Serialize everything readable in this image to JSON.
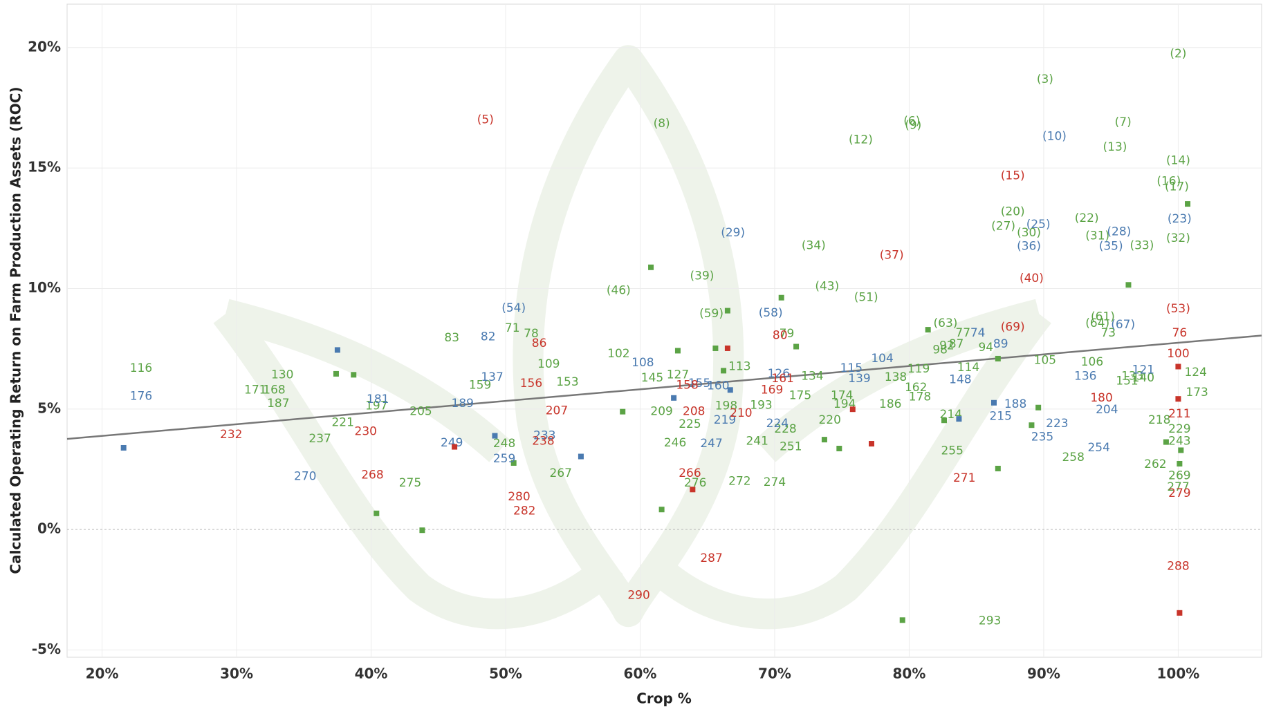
{
  "chart_data": {
    "type": "scatter",
    "x_label": "Crop %",
    "y_label": "Calculated Operating Return on Farm Production Assets (ROC)",
    "xlim": [
      17.4,
      106.2
    ],
    "ylim": [
      -5.3,
      21.8
    ],
    "xticks": [
      {
        "value": 20,
        "label": "20%"
      },
      {
        "value": 30,
        "label": "30%"
      },
      {
        "value": 40,
        "label": "40%"
      },
      {
        "value": 50,
        "label": "50%"
      },
      {
        "value": 60,
        "label": "60%"
      },
      {
        "value": 70,
        "label": "70%"
      },
      {
        "value": 80,
        "label": "80%"
      },
      {
        "value": 90,
        "label": "90%"
      },
      {
        "value": 100,
        "label": "100%"
      }
    ],
    "yticks": [
      {
        "value": -5,
        "label": "-5%"
      },
      {
        "value": 0,
        "label": "0%"
      },
      {
        "value": 5,
        "label": "5%"
      },
      {
        "value": 10,
        "label": "10%"
      },
      {
        "value": 15,
        "label": "15%"
      },
      {
        "value": 20,
        "label": "20%"
      }
    ],
    "grid": true,
    "trendline": {
      "color": "#777777",
      "x": [
        17.4,
        106.2
      ],
      "y": [
        3.76,
        8.05
      ]
    },
    "series": [
      {
        "color": "#5ba345",
        "x": [
          100.0,
          90.1,
          80.2,
          80.3,
          95.9,
          61.6,
          76.4,
          95.3,
          100.0,
          99.3,
          99.9,
          87.7,
          93.2,
          87.0,
          88.9,
          94.0,
          97.3,
          100.0,
          72.9,
          64.6,
          58.4,
          73.9,
          76.8,
          65.3,
          94.4,
          94.0,
          82.7,
          50.5,
          51.9,
          46.0,
          70.9,
          84.0,
          94.8,
          82.8,
          83.5,
          82.3,
          85.7,
          58.4,
          53.2,
          90.1,
          93.6,
          22.9,
          67.4,
          84.4,
          80.7,
          62.8,
          60.9,
          33.4,
          96.6,
          97.4,
          101.3,
          79.0,
          72.8,
          54.6,
          48.1,
          96.2,
          31.4,
          32.8,
          80.5,
          101.4,
          75.0,
          71.9,
          80.8,
          33.1,
          78.6,
          75.2,
          40.4,
          66.4,
          69.0,
          43.7,
          61.6,
          74.1,
          37.9,
          98.6,
          83.1,
          63.7,
          70.8,
          100.1,
          36.2,
          68.7,
          100.1,
          62.6,
          49.9,
          71.2,
          83.2,
          92.2,
          98.3,
          54.1,
          100.1,
          67.4,
          70.0,
          42.9,
          64.1,
          100.0,
          86.0,
          60.8,
          100.7,
          70.5,
          66.5,
          96.3,
          81.4,
          71.6,
          65.6,
          62.8,
          86.6,
          66.2,
          37.4,
          38.7,
          58.7,
          89.6,
          82.6,
          89.1,
          73.7,
          74.8,
          100.2,
          99.1,
          50.6,
          86.6,
          100.1,
          40.4,
          43.8,
          61.6,
          79.5
        ],
        "values": [
          19.73,
          18.67,
          16.94,
          16.77,
          16.9,
          16.84,
          16.17,
          15.87,
          15.31,
          14.44,
          14.21,
          13.18,
          12.91,
          12.58,
          12.31,
          12.18,
          11.78,
          12.08,
          11.78,
          10.52,
          9.92,
          10.08,
          9.62,
          8.95,
          8.82,
          8.55,
          8.55,
          8.35,
          8.12,
          7.95,
          8.12,
          8.15,
          8.15,
          7.62,
          7.69,
          7.45,
          7.55,
          7.29,
          6.86,
          7.02,
          6.95,
          6.69,
          6.76,
          6.72,
          6.66,
          6.42,
          6.29,
          6.42,
          6.36,
          6.29,
          6.52,
          6.32,
          6.36,
          6.12,
          5.99,
          6.16,
          5.79,
          5.79,
          5.89,
          5.69,
          5.56,
          5.56,
          5.49,
          5.22,
          5.19,
          5.19,
          5.12,
          5.12,
          5.16,
          4.89,
          4.89,
          4.53,
          4.43,
          4.53,
          4.76,
          4.36,
          4.16,
          4.16,
          3.76,
          3.66,
          3.66,
          3.59,
          3.56,
          3.43,
          3.26,
          2.99,
          2.7,
          2.33,
          2.23,
          2.0,
          1.96,
          1.93,
          1.93,
          1.76,
          -3.79,
          10.88,
          13.51,
          9.62,
          9.08,
          10.15,
          8.29,
          7.59,
          7.52,
          7.42,
          7.09,
          6.59,
          6.46,
          6.42,
          4.89,
          5.06,
          4.53,
          4.33,
          3.73,
          3.36,
          3.29,
          3.63,
          2.76,
          2.53,
          2.73,
          0.67,
          -0.03,
          0.83,
          -3.76
        ],
        "labels": [
          "(2)",
          "(3)",
          "(6)",
          "(9)",
          "(7)",
          "(8)",
          "(12)",
          "(13)",
          "(14)",
          "(16)",
          "(17)",
          "(20)",
          "(22)",
          "(27)",
          "(30)",
          "(31)",
          "(33)",
          "(32)",
          "(34)",
          "(39)",
          "(46)",
          "(43)",
          "(51)",
          "(59)",
          "(61)",
          "(64)",
          "(63)",
          "71",
          "78",
          "83",
          "79",
          "77",
          "73",
          "92",
          "87",
          "98",
          "94",
          "102",
          "109",
          "105",
          "106",
          "116",
          "113",
          "114",
          "119",
          "127",
          "145",
          "130",
          "133",
          "140",
          "124",
          "138",
          "134",
          "153",
          "159",
          "151",
          "171",
          "168",
          "162",
          "173",
          "174",
          "175",
          "178",
          "187",
          "186",
          "194",
          "197",
          "198",
          "193",
          "205",
          "209",
          "220",
          "221",
          "218",
          "214",
          "225",
          "228",
          "229",
          "237",
          "241",
          "243",
          "246",
          "248",
          "251",
          "255",
          "258",
          "262",
          "267",
          "269",
          "272",
          "274",
          "275",
          "276",
          "277",
          "293",
          null,
          null,
          null,
          null,
          null,
          null,
          null,
          null,
          null,
          null,
          null,
          null,
          null,
          null,
          null,
          null,
          null,
          null,
          null,
          null,
          null,
          null,
          null,
          null,
          null,
          null,
          null,
          null
        ]
      },
      {
        "color": "#4a7ab0",
        "x": [
          90.8,
          89.6,
          95.6,
          88.9,
          95.0,
          66.9,
          100.1,
          50.6,
          69.7,
          95.9,
          85.1,
          48.7,
          86.8,
          60.2,
          78.0,
          75.7,
          97.4,
          70.3,
          49.0,
          93.1,
          76.3,
          83.8,
          64.4,
          65.8,
          22.9,
          40.5,
          46.8,
          87.9,
          94.7,
          86.8,
          66.3,
          70.2,
          91.0,
          52.9,
          89.9,
          65.3,
          46.0,
          94.1,
          49.9,
          35.1,
          37.5,
          62.5,
          86.3,
          83.7,
          66.7,
          49.2,
          55.6,
          21.6
        ],
        "values": [
          16.31,
          12.65,
          12.35,
          11.75,
          11.75,
          12.31,
          12.88,
          9.18,
          8.98,
          8.49,
          8.15,
          7.99,
          7.69,
          6.92,
          7.09,
          6.69,
          6.62,
          6.46,
          6.32,
          6.36,
          6.26,
          6.22,
          6.06,
          5.96,
          5.52,
          5.39,
          5.22,
          5.19,
          4.96,
          4.69,
          4.53,
          4.39,
          4.39,
          3.89,
          3.83,
          3.56,
          3.59,
          3.39,
          2.93,
          2.2,
          7.45,
          5.46,
          5.26,
          4.59,
          5.79,
          3.89,
          3.03,
          3.39
        ],
        "labels": [
          "(10)",
          "(25)",
          "(28)",
          "(36)",
          "(35)",
          "(29)",
          "(23)",
          "(54)",
          "(58)",
          "(67)",
          "74",
          "82",
          "89",
          "108",
          "104",
          "115",
          "121",
          "126",
          "137",
          "136",
          "139",
          "148",
          "155",
          "160",
          "176",
          "181",
          "189",
          "188",
          "204",
          "215",
          "219",
          "224",
          "223",
          "233",
          "235",
          "247",
          "249",
          "254",
          "259",
          "270",
          null,
          null,
          null,
          null,
          null,
          null,
          null,
          null
        ]
      },
      {
        "color": "#c8342a",
        "x": [
          48.5,
          87.7,
          78.7,
          89.1,
          100.0,
          87.7,
          70.4,
          52.5,
          100.1,
          100.0,
          51.9,
          63.5,
          70.6,
          69.8,
          94.3,
          53.8,
          64.0,
          67.5,
          100.1,
          29.6,
          39.6,
          52.8,
          63.7,
          40.1,
          84.1,
          100.1,
          51.0,
          51.4,
          65.3,
          100.0,
          59.9,
          66.5,
          100.0,
          100.0,
          46.2,
          75.8,
          77.2,
          63.9,
          100.1
        ],
        "values": [
          17.0,
          14.68,
          11.38,
          10.42,
          9.15,
          8.39,
          8.05,
          7.72,
          8.15,
          7.29,
          6.06,
          5.99,
          6.26,
          5.79,
          5.46,
          4.93,
          4.89,
          4.83,
          4.79,
          3.93,
          4.06,
          3.66,
          2.33,
          2.26,
          2.13,
          1.5,
          1.36,
          0.77,
          -1.2,
          -1.53,
          -2.73,
          7.52,
          6.76,
          5.42,
          3.43,
          4.99,
          3.56,
          1.66,
          -3.46
        ],
        "labels": [
          "(5)",
          "(15)",
          "(37)",
          "(40)",
          "(53)",
          "(69)",
          "80",
          "86",
          "76",
          "100",
          "156",
          "158",
          "161",
          "169",
          "180",
          "207",
          "208",
          "210",
          "211",
          "232",
          "230",
          "238",
          "266",
          "268",
          "271",
          "279",
          "280",
          "282",
          "287",
          "288",
          "290",
          null,
          null,
          null,
          null,
          null,
          null,
          null,
          null
        ]
      }
    ]
  }
}
